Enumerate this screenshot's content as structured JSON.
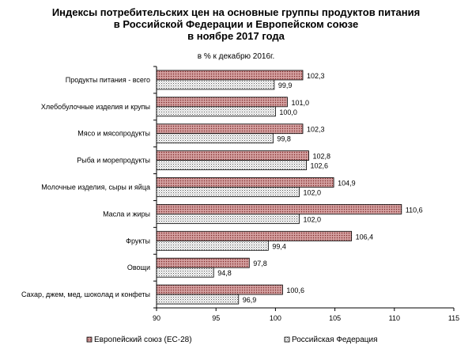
{
  "chart_data": {
    "type": "bar",
    "orientation": "horizontal",
    "title": [
      "Индексы потребительских цен на основные группы продуктов питания",
      "в Российской Федерации и Европейском союзе",
      "в ноябре 2017 года"
    ],
    "subtitle": "в % к декабрю 2016г.",
    "categories": [
      "Продукты питания - всего",
      "Хлебобулочные изделия и крупы",
      "Мясо и мясопродукты",
      "Рыба и морепродукты",
      "Молочные изделия, сыры и яйца",
      "Масла и жиры",
      "Фрукты",
      "Овощи",
      "Сахар, джем, мед, шоколад и конфеты"
    ],
    "series": [
      {
        "name": "Европейский союз (ЕС-28)",
        "values": [
          102.3,
          101.0,
          102.3,
          102.8,
          104.9,
          110.6,
          106.4,
          97.8,
          100.6
        ],
        "labels": [
          "102,3",
          "101,0",
          "102,3",
          "102,8",
          "104,9",
          "110,6",
          "106,4",
          "97,8",
          "100,6"
        ],
        "color": "#c98989",
        "pattern": "dotted"
      },
      {
        "name": "Российская Федерация",
        "values": [
          99.9,
          100.0,
          99.8,
          102.6,
          102.0,
          102.0,
          99.4,
          94.8,
          96.9
        ],
        "labels": [
          "99,9",
          "100,0",
          "99,8",
          "102,6",
          "102,0",
          "102,0",
          "99,4",
          "94,8",
          "96,9"
        ],
        "color": "#f5f5f5",
        "pattern": "dotted"
      }
    ],
    "xlim": [
      90,
      115
    ],
    "xticks": [
      "90",
      "95",
      "100",
      "105",
      "110",
      "115"
    ],
    "grid": false,
    "legend_position": "bottom"
  }
}
